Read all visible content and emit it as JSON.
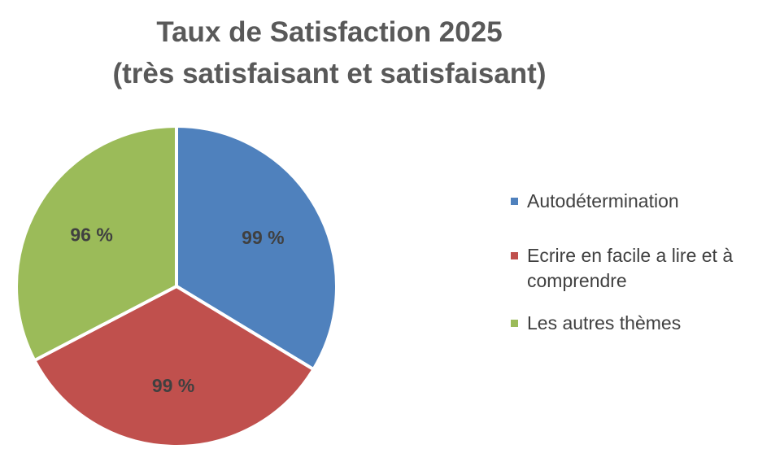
{
  "chart_data": {
    "type": "pie",
    "title": "Taux de Satisfaction 2025",
    "subtitle": "(très satisfaisant et satisfaisant)",
    "categories": [
      "Autodétermination",
      "Ecrire en facile a lire et à comprendre",
      "Les autres thèmes"
    ],
    "values": [
      99,
      99,
      96
    ],
    "data_labels": [
      "99 %",
      "99 %",
      "96 %"
    ],
    "colors": [
      "#4F81BD",
      "#C0504D",
      "#9BBB59"
    ],
    "legend": {
      "position": "right",
      "entries": [
        {
          "line1": "Autodétermination",
          "line2": ""
        },
        {
          "line1": "Ecrire en facile a lire et à",
          "line2": "comprendre"
        },
        {
          "line1": "Les autres thèmes",
          "line2": ""
        }
      ]
    },
    "start_angle": "12 o'clock",
    "direction": "clockwise",
    "slice_border_color": "#FFFFFF"
  }
}
